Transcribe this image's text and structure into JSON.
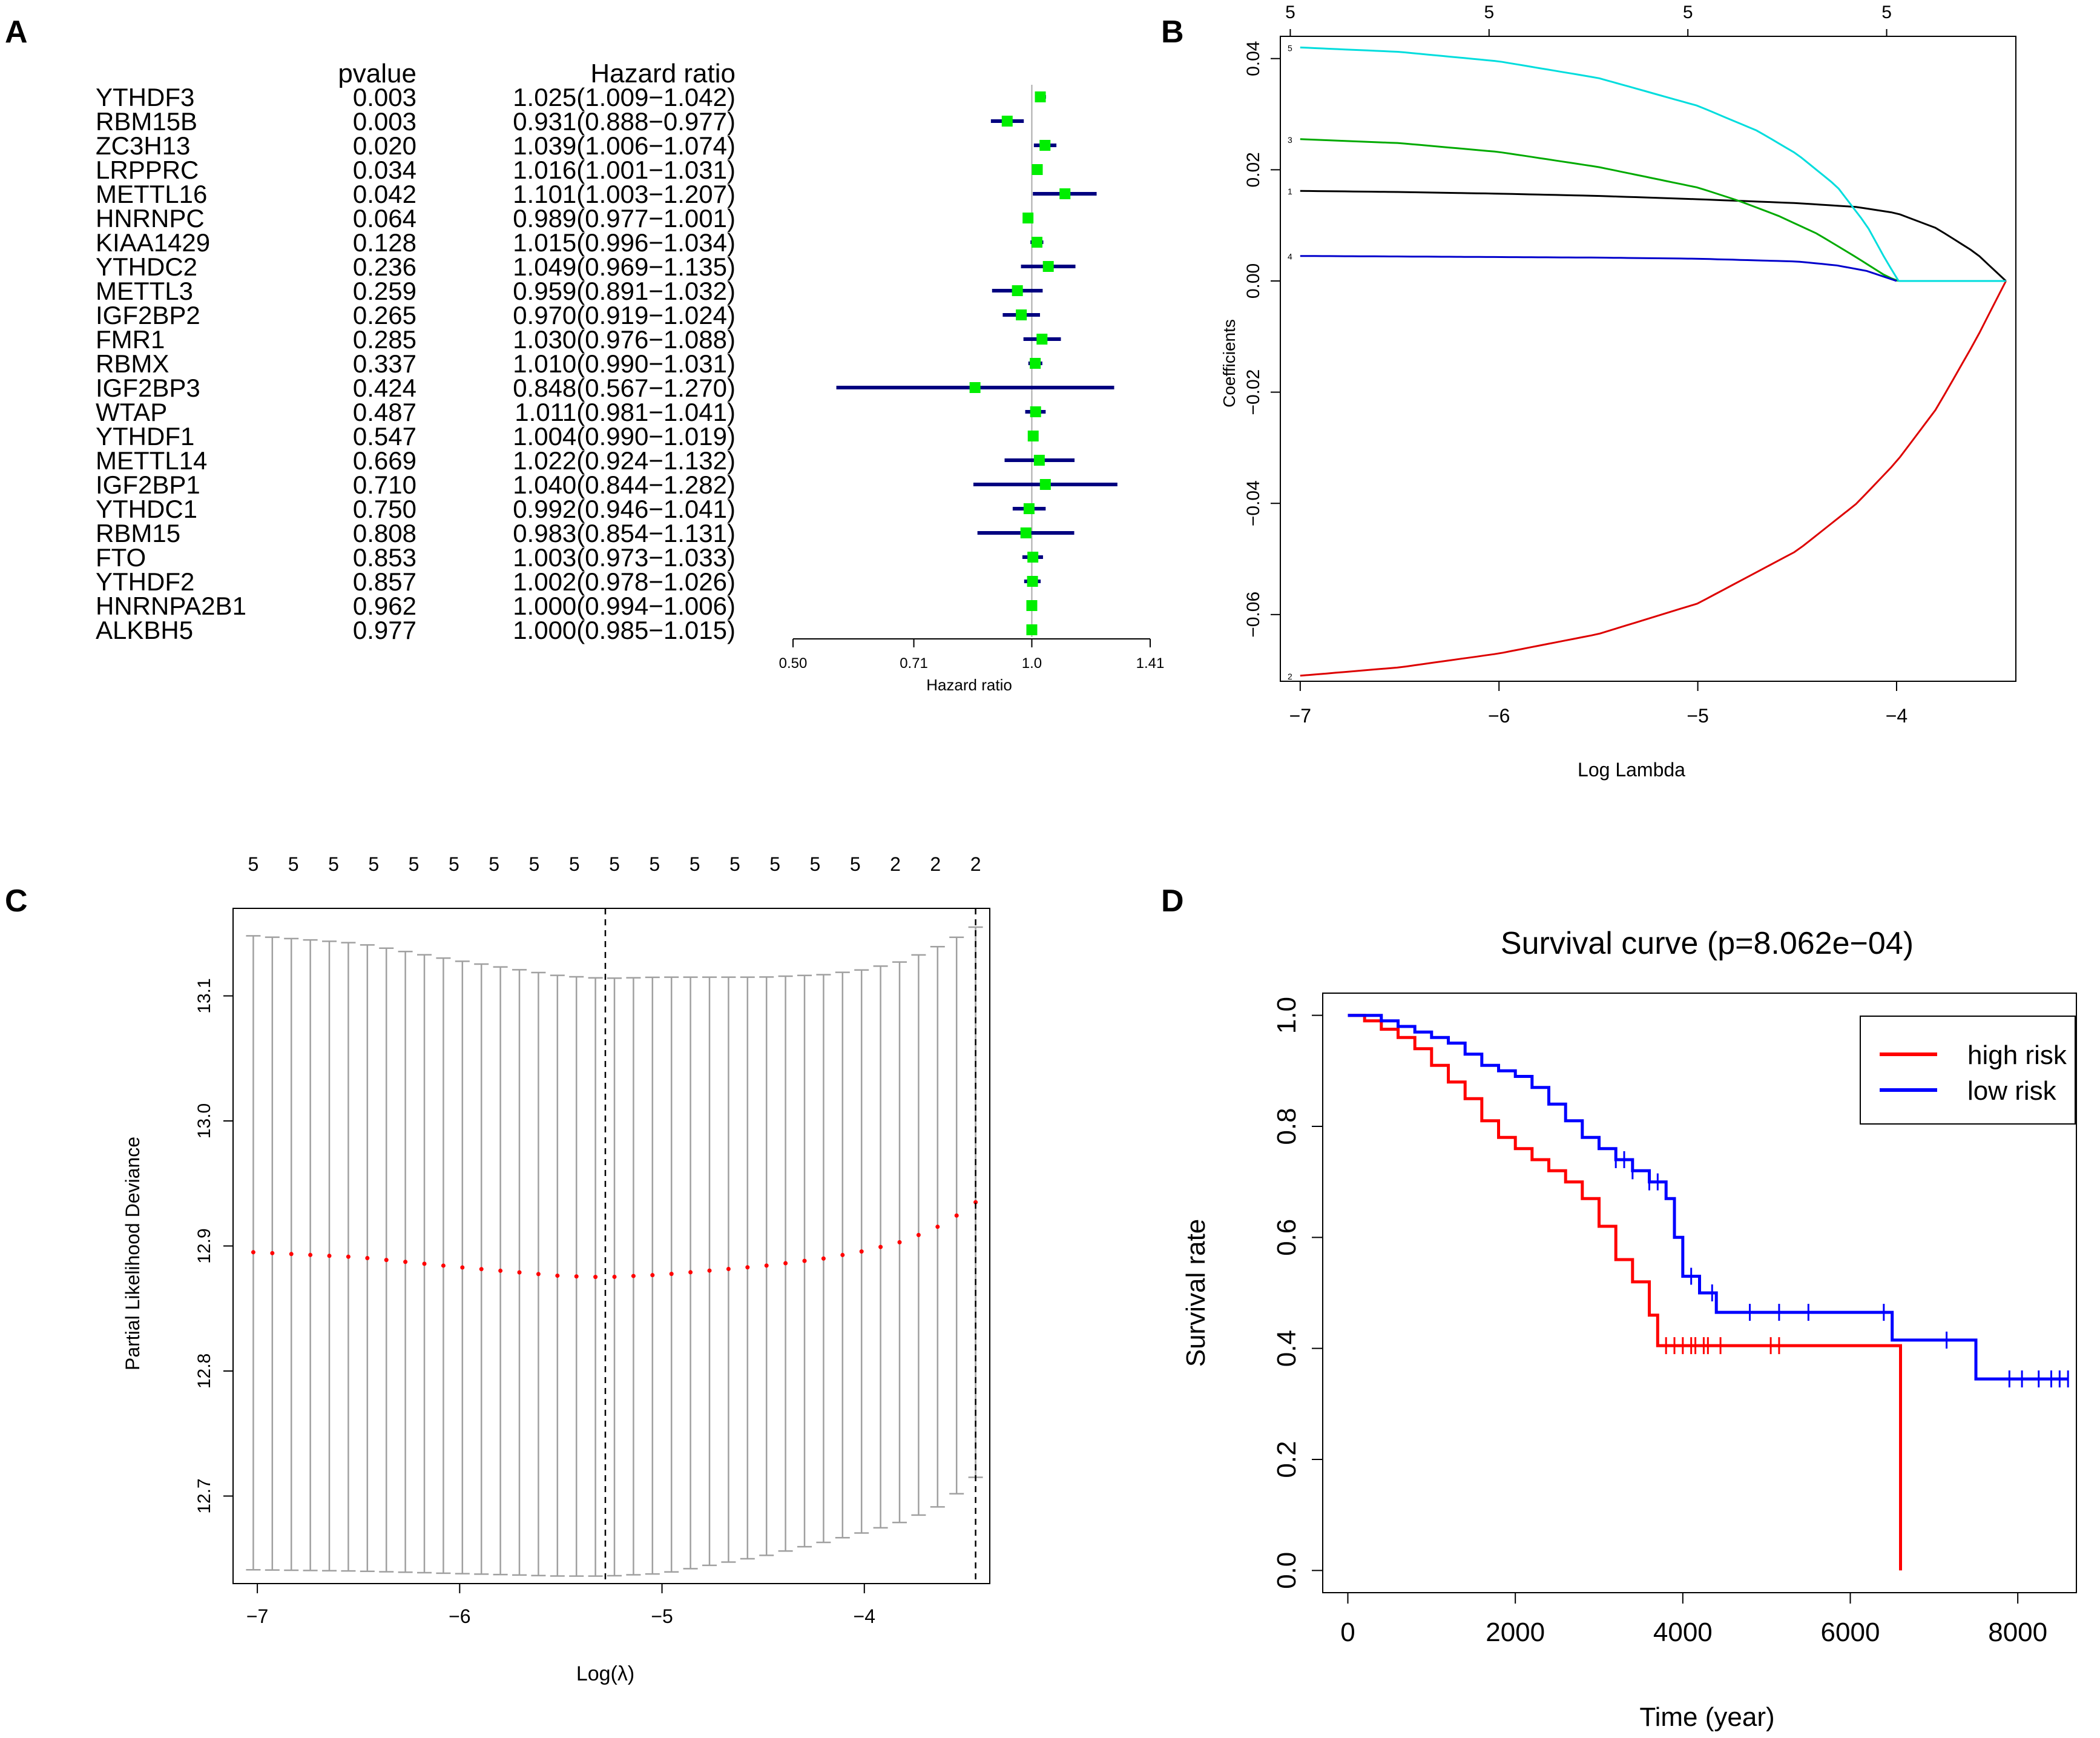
{
  "chart_data": [
    {
      "panel": "A",
      "type": "forest",
      "col_pvalue": "pvalue",
      "col_hr": "Hazard ratio",
      "xlabel": "Hazard ratio",
      "ticks": [
        "0.50",
        "0.71",
        "1.0",
        "1.41"
      ],
      "tick_values": [
        0.5,
        0.71,
        1.0,
        1.41
      ],
      "rows": [
        {
          "gene": "YTHDF3",
          "p": "0.003",
          "hr_text": "1.025(1.009−1.042)",
          "hr": 1.025,
          "lo": 1.009,
          "hi": 1.042
        },
        {
          "gene": "RBM15B",
          "p": "0.003",
          "hr_text": "0.931(0.888−0.977)",
          "hr": 0.931,
          "lo": 0.888,
          "hi": 0.977
        },
        {
          "gene": "ZC3H13",
          "p": "0.020",
          "hr_text": "1.039(1.006−1.074)",
          "hr": 1.039,
          "lo": 1.006,
          "hi": 1.074
        },
        {
          "gene": "LRPPRC",
          "p": "0.034",
          "hr_text": "1.016(1.001−1.031)",
          "hr": 1.016,
          "lo": 1.001,
          "hi": 1.031
        },
        {
          "gene": "METTL16",
          "p": "0.042",
          "hr_text": "1.101(1.003−1.207)",
          "hr": 1.101,
          "lo": 1.003,
          "hi": 1.207
        },
        {
          "gene": "HNRNPC",
          "p": "0.064",
          "hr_text": "0.989(0.977−1.001)",
          "hr": 0.989,
          "lo": 0.977,
          "hi": 1.001
        },
        {
          "gene": "KIAA1429",
          "p": "0.128",
          "hr_text": "1.015(0.996−1.034)",
          "hr": 1.015,
          "lo": 0.996,
          "hi": 1.034
        },
        {
          "gene": "YTHDC2",
          "p": "0.236",
          "hr_text": "1.049(0.969−1.135)",
          "hr": 1.049,
          "lo": 0.969,
          "hi": 1.135
        },
        {
          "gene": "METTL3",
          "p": "0.259",
          "hr_text": "0.959(0.891−1.032)",
          "hr": 0.959,
          "lo": 0.891,
          "hi": 1.032
        },
        {
          "gene": "IGF2BP2",
          "p": "0.265",
          "hr_text": "0.970(0.919−1.024)",
          "hr": 0.97,
          "lo": 0.919,
          "hi": 1.024
        },
        {
          "gene": "FMR1",
          "p": "0.285",
          "hr_text": "1.030(0.976−1.088)",
          "hr": 1.03,
          "lo": 0.976,
          "hi": 1.088
        },
        {
          "gene": "RBMX",
          "p": "0.337",
          "hr_text": "1.010(0.990−1.031)",
          "hr": 1.01,
          "lo": 0.99,
          "hi": 1.031
        },
        {
          "gene": "IGF2BP3",
          "p": "0.424",
          "hr_text": "0.848(0.567−1.270)",
          "hr": 0.848,
          "lo": 0.567,
          "hi": 1.27
        },
        {
          "gene": "WTAP",
          "p": "0.487",
          "hr_text": "1.011(0.981−1.041)",
          "hr": 1.011,
          "lo": 0.981,
          "hi": 1.041
        },
        {
          "gene": "YTHDF1",
          "p": "0.547",
          "hr_text": "1.004(0.990−1.019)",
          "hr": 1.004,
          "lo": 0.99,
          "hi": 1.019
        },
        {
          "gene": "METTL14",
          "p": "0.669",
          "hr_text": "1.022(0.924−1.132)",
          "hr": 1.022,
          "lo": 0.924,
          "hi": 1.132
        },
        {
          "gene": "IGF2BP1",
          "p": "0.710",
          "hr_text": "1.040(0.844−1.282)",
          "hr": 1.04,
          "lo": 0.844,
          "hi": 1.282
        },
        {
          "gene": "YTHDC1",
          "p": "0.750",
          "hr_text": "0.992(0.946−1.041)",
          "hr": 0.992,
          "lo": 0.946,
          "hi": 1.041
        },
        {
          "gene": "RBM15",
          "p": "0.808",
          "hr_text": "0.983(0.854−1.131)",
          "hr": 0.983,
          "lo": 0.854,
          "hi": 1.131
        },
        {
          "gene": "FTO",
          "p": "0.853",
          "hr_text": "1.003(0.973−1.033)",
          "hr": 1.003,
          "lo": 0.973,
          "hi": 1.033
        },
        {
          "gene": "YTHDF2",
          "p": "0.857",
          "hr_text": "1.002(0.978−1.026)",
          "hr": 1.002,
          "lo": 0.978,
          "hi": 1.026
        },
        {
          "gene": "HNRNPA2B1",
          "p": "0.962",
          "hr_text": "1.000(0.994−1.006)",
          "hr": 1.0,
          "lo": 0.994,
          "hi": 1.006
        },
        {
          "gene": "ALKBH5",
          "p": "0.977",
          "hr_text": "1.000(0.985−1.015)",
          "hr": 1.0,
          "lo": 0.985,
          "hi": 1.015
        }
      ],
      "colors": {
        "box": "#00ee00",
        "ci": "#000080",
        "ref": "#aaaaaa"
      }
    },
    {
      "panel": "B",
      "type": "line",
      "xlabel": "Log Lambda",
      "ylabel": "Coefficients",
      "xlim": [
        -7.1,
        -3.4
      ],
      "ylim": [
        -0.072,
        0.044
      ],
      "xticks": [
        -7,
        -6,
        -5,
        -4
      ],
      "xtick_labels": [
        "−7",
        "−6",
        "−5",
        "−4"
      ],
      "yticks": [
        -0.06,
        -0.04,
        -0.02,
        0.0,
        0.02,
        0.04
      ],
      "ytick_labels": [
        "−0.06",
        "−0.04",
        "−0.02",
        "0.00",
        "0.02",
        "0.04"
      ],
      "top_ticks": [
        -7.05,
        -6.05,
        -5.05,
        -4.05
      ],
      "top_labels": [
        "5",
        "5",
        "5",
        "5"
      ],
      "series": [
        {
          "name": "1",
          "label": "1",
          "color": "#000000",
          "x": [
            -7.0,
            -6.5,
            -6.0,
            -5.5,
            -5.0,
            -4.5,
            -4.2,
            -4.0,
            -3.8,
            -3.6,
            -3.45
          ],
          "values": [
            0.0162,
            0.016,
            0.0157,
            0.0153,
            0.0147,
            0.014,
            0.0133,
            0.0122,
            0.0095,
            0.005,
            0.0
          ]
        },
        {
          "name": "2",
          "label": "2",
          "color": "#dd0000",
          "x": [
            -7.0,
            -6.5,
            -6.0,
            -5.5,
            -5.0,
            -4.5,
            -4.2,
            -4.0,
            -3.8,
            -3.6,
            -3.45
          ],
          "values": [
            -0.071,
            -0.0695,
            -0.067,
            -0.0635,
            -0.058,
            -0.0485,
            -0.04,
            -0.0325,
            -0.023,
            -0.0105,
            0.0
          ]
        },
        {
          "name": "3",
          "label": "3",
          "color": "#00aa00",
          "x": [
            -7.0,
            -6.5,
            -6.0,
            -5.5,
            -5.0,
            -4.8,
            -4.6,
            -4.4,
            -4.2,
            -4.05,
            -3.99
          ],
          "values": [
            0.0255,
            0.0248,
            0.0232,
            0.0205,
            0.0168,
            0.0145,
            0.0118,
            0.0085,
            0.0042,
            0.0008,
            0.0
          ]
        },
        {
          "name": "4",
          "label": "4",
          "color": "#0000cc",
          "x": [
            -7.0,
            -6.5,
            -6.0,
            -5.5,
            -5.0,
            -4.5,
            -4.3,
            -4.15,
            -4.05,
            -4.0
          ],
          "values": [
            0.0045,
            0.0044,
            0.0043,
            0.0042,
            0.004,
            0.0035,
            0.0028,
            0.0018,
            0.0006,
            0.0
          ]
        },
        {
          "name": "5",
          "label": "5",
          "color": "#00dddd",
          "x": [
            -7.0,
            -6.5,
            -6.0,
            -5.5,
            -5.0,
            -4.7,
            -4.5,
            -4.3,
            -4.15,
            -4.05,
            -3.99
          ],
          "values": [
            0.042,
            0.0412,
            0.0395,
            0.0365,
            0.0315,
            0.027,
            0.0228,
            0.017,
            0.01,
            0.0035,
            0.0
          ]
        },
        {
          "name": "zero",
          "label": "",
          "color": "#00dddd",
          "x": [
            -3.99,
            -3.45
          ],
          "values": [
            0.0,
            0.0
          ]
        }
      ]
    },
    {
      "panel": "C",
      "type": "errorbar",
      "xlabel": "Log(λ)",
      "ylabel": "Partial Likelihood Deviance",
      "xlim": [
        -7.12,
        -3.38
      ],
      "ylim": [
        12.63,
        13.17
      ],
      "xticks": [
        -7,
        -6,
        -5,
        -4
      ],
      "xtick_labels": [
        "−7",
        "−6",
        "−5",
        "−4"
      ],
      "yticks": [
        12.7,
        12.8,
        12.9,
        13.0,
        13.1
      ],
      "ytick_labels": [
        "12.7",
        "12.8",
        "12.9",
        "13.0",
        "13.1"
      ],
      "top_labels": [
        "5",
        "5",
        "5",
        "5",
        "5",
        "5",
        "5",
        "5",
        "5",
        "5",
        "5",
        "5",
        "5",
        "5",
        "5",
        "5",
        "2",
        "2",
        "2"
      ],
      "lambda_min": -5.28,
      "lambda_1se": -3.45,
      "n_points": 39,
      "x_start": -7.02,
      "x_end": -3.45,
      "mean_curve": {
        "x": [
          -7.02,
          -6.5,
          -6.0,
          -5.5,
          -5.28,
          -5.0,
          -4.5,
          -4.2,
          -4.0,
          -3.8,
          -3.6,
          -3.45
        ],
        "values": [
          12.895,
          12.891,
          12.883,
          12.876,
          12.875,
          12.877,
          12.884,
          12.89,
          12.896,
          12.904,
          12.918,
          12.935
        ]
      },
      "upper_curve": {
        "x": [
          -7.02,
          -6.5,
          -6.0,
          -5.5,
          -5.28,
          -5.0,
          -4.5,
          -4.2,
          -4.0,
          -3.8,
          -3.6,
          -3.45
        ],
        "values": [
          13.148,
          13.142,
          13.128,
          13.116,
          13.114,
          13.115,
          13.115,
          13.117,
          13.121,
          13.128,
          13.142,
          13.155
        ]
      },
      "lower_curve": {
        "x": [
          -7.02,
          -6.5,
          -6.0,
          -5.5,
          -5.28,
          -5.0,
          -4.5,
          -4.2,
          -4.0,
          -3.8,
          -3.6,
          -3.45
        ],
        "values": [
          12.641,
          12.64,
          12.638,
          12.636,
          12.636,
          12.638,
          12.652,
          12.663,
          12.671,
          12.68,
          12.694,
          12.715
        ]
      },
      "colors": {
        "mean": "#ff0000",
        "bar": "#a0a0a0",
        "dash": "#000000"
      }
    },
    {
      "panel": "D",
      "type": "survival",
      "title": "Survival curve (p=8.062e−04)",
      "xlabel": "Time (year)",
      "ylabel": "Survival rate",
      "xlim": [
        -300,
        8700
      ],
      "ylim": [
        -0.04,
        1.04
      ],
      "xticks": [
        0,
        2000,
        4000,
        6000,
        8000
      ],
      "xtick_labels": [
        "0",
        "2000",
        "4000",
        "6000",
        "8000"
      ],
      "yticks": [
        0.0,
        0.2,
        0.4,
        0.6,
        0.8,
        1.0
      ],
      "ytick_labels": [
        "0.0",
        "0.2",
        "0.4",
        "0.6",
        "0.8",
        "1.0"
      ],
      "legend": [
        {
          "name": "high risk",
          "color": "#ff0000"
        },
        {
          "name": "low risk",
          "color": "#0000ff"
        }
      ],
      "legend_position": "top-right",
      "series": [
        {
          "name": "high risk",
          "color": "#ff0000",
          "x": [
            0,
            200,
            400,
            600,
            800,
            1000,
            1200,
            1400,
            1600,
            1800,
            2000,
            2200,
            2400,
            2600,
            2800,
            3000,
            3200,
            3400,
            3600,
            3700,
            4000,
            4500,
            5000,
            5500,
            6000,
            6550,
            6600
          ],
          "values": [
            1.0,
            0.99,
            0.975,
            0.96,
            0.94,
            0.91,
            0.88,
            0.85,
            0.81,
            0.78,
            0.76,
            0.74,
            0.72,
            0.7,
            0.67,
            0.62,
            0.56,
            0.52,
            0.46,
            0.405,
            0.405,
            0.405,
            0.405,
            0.405,
            0.405,
            0.405,
            0.0
          ],
          "censor_x": [
            3800,
            3900,
            4000,
            4100,
            4150,
            4250,
            4300,
            4450,
            5050,
            5150
          ]
        },
        {
          "name": "low risk",
          "color": "#0000ff",
          "x": [
            0,
            200,
            400,
            600,
            800,
            1000,
            1200,
            1400,
            1600,
            1800,
            2000,
            2200,
            2400,
            2600,
            2800,
            3000,
            3200,
            3400,
            3600,
            3800,
            3900,
            4000,
            4200,
            4400,
            4800,
            5500,
            6000,
            6450,
            6500,
            7000,
            7450,
            7500,
            8000,
            8600
          ],
          "values": [
            1.0,
            1.0,
            0.99,
            0.98,
            0.97,
            0.96,
            0.95,
            0.93,
            0.91,
            0.9,
            0.89,
            0.87,
            0.84,
            0.81,
            0.78,
            0.76,
            0.74,
            0.72,
            0.7,
            0.67,
            0.6,
            0.53,
            0.5,
            0.465,
            0.465,
            0.465,
            0.465,
            0.465,
            0.415,
            0.415,
            0.415,
            0.345,
            0.345,
            0.345
          ],
          "censor_x": [
            3200,
            3300,
            3400,
            3600,
            3700,
            4100,
            4350,
            4800,
            5150,
            5500,
            6400,
            7150,
            7900,
            8050,
            8250,
            8400,
            8500,
            8600
          ]
        }
      ]
    }
  ],
  "panels": {
    "a": "A",
    "b": "B",
    "c": "C",
    "d": "D"
  }
}
